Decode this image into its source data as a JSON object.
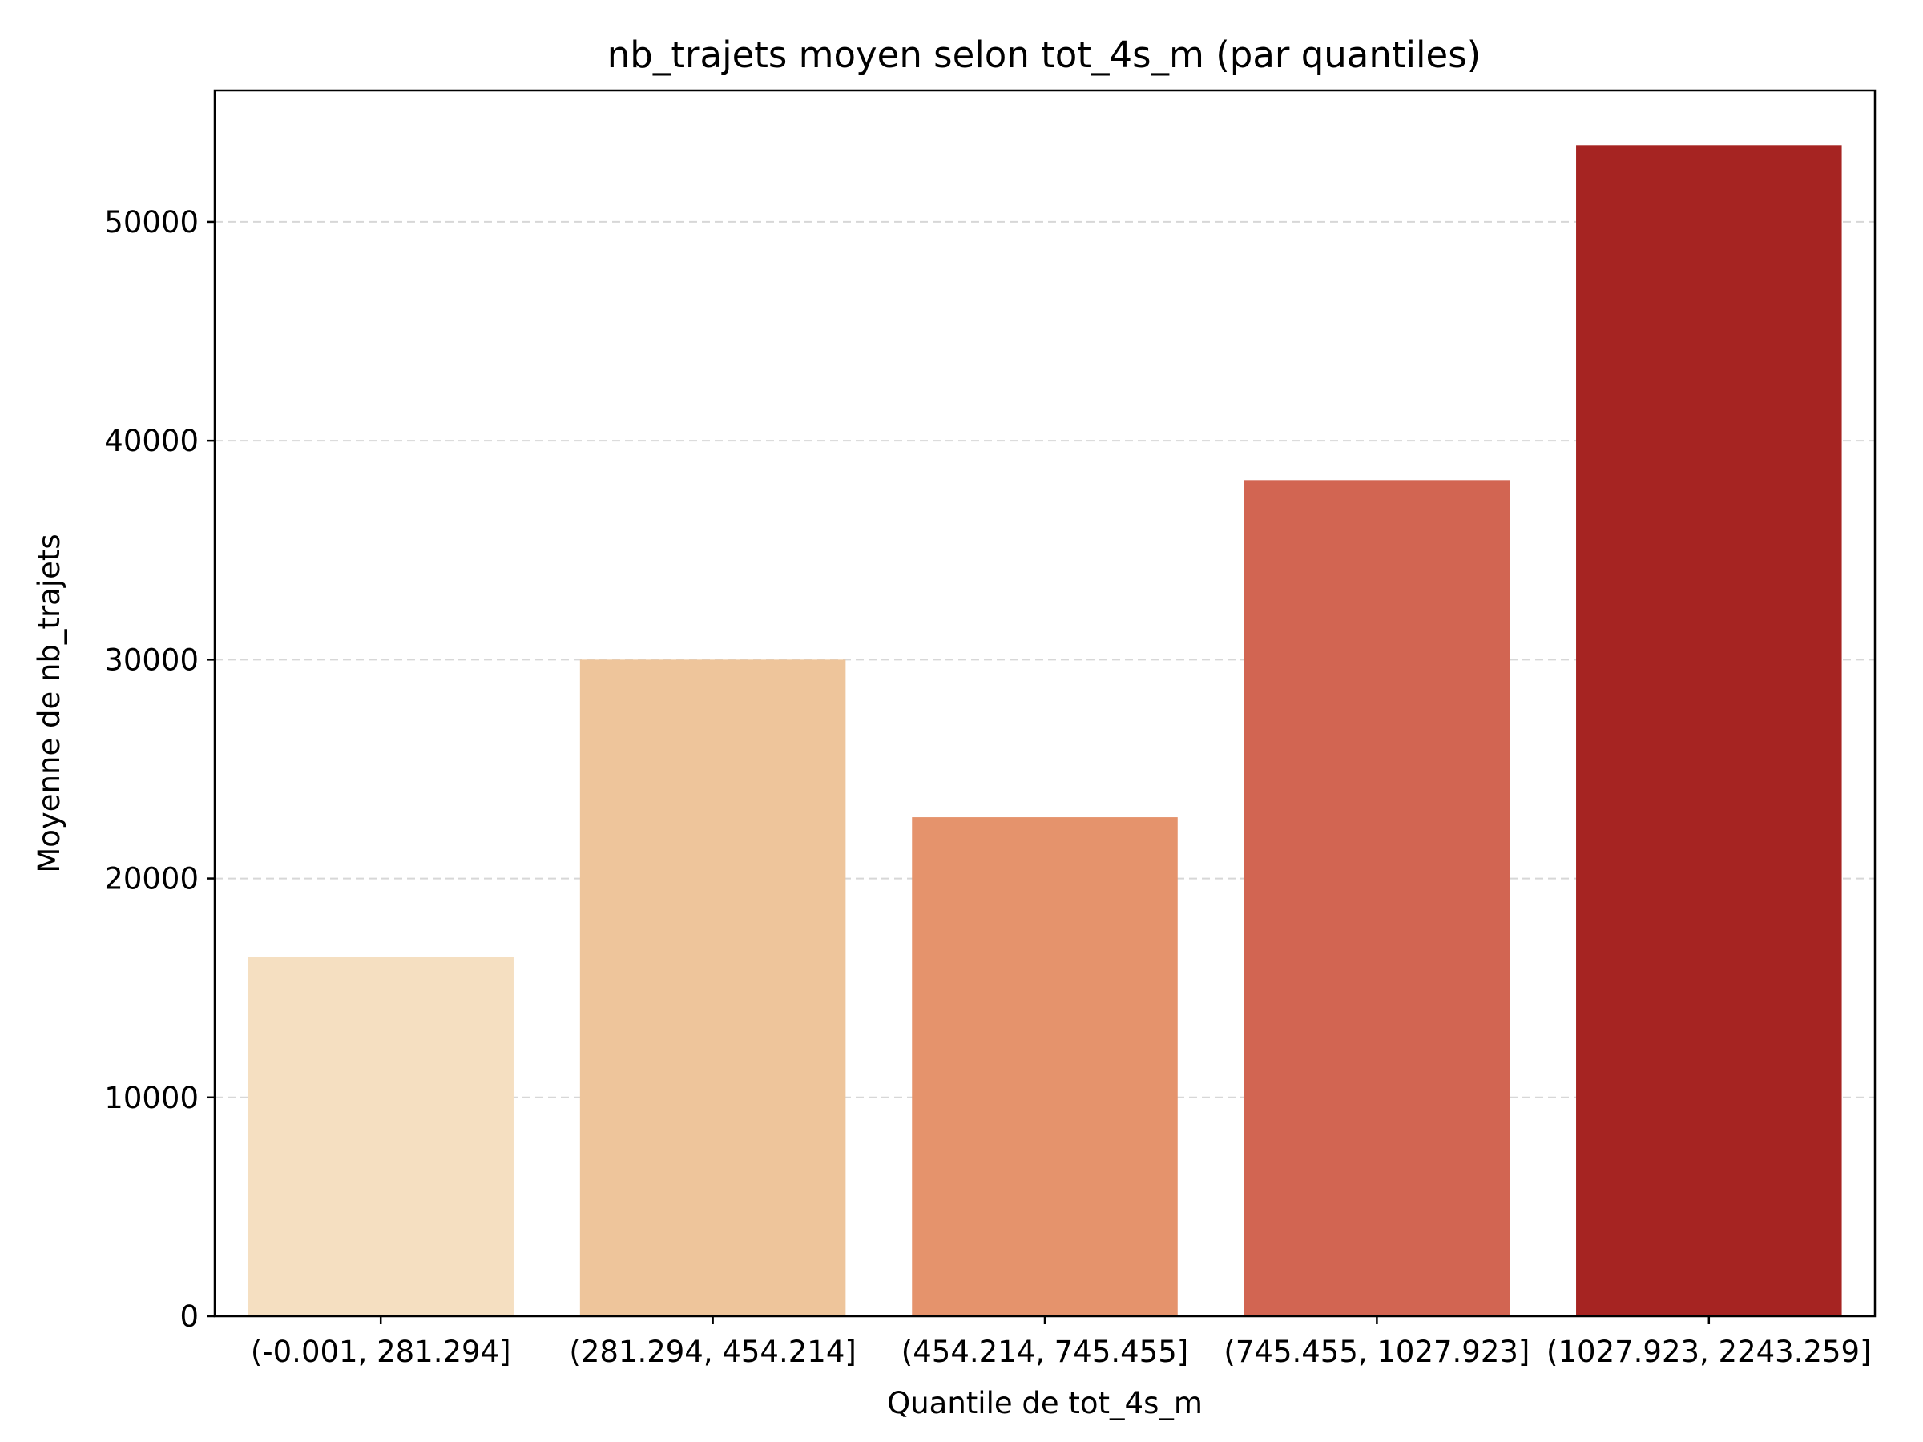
{
  "chart_data": {
    "type": "bar",
    "title": "nb_trajets moyen selon tot_4s_m (par quantiles)",
    "xlabel": "Quantile de tot_4s_m",
    "ylabel": "Moyenne de nb_trajets",
    "categories": [
      "(-0.001, 281.294]",
      "(281.294, 454.214]",
      "(454.214, 745.455]",
      "(745.455, 1027.923]",
      "(1027.923, 2243.259]"
    ],
    "values": [
      16400,
      30000,
      22800,
      38200,
      53500
    ],
    "colors": [
      "#f5dfc1",
      "#eec59b",
      "#e5936c",
      "#d26552",
      "#a62422"
    ],
    "ylim": [
      0,
      56000
    ],
    "yticks": [
      0,
      10000,
      20000,
      30000,
      40000,
      50000
    ],
    "grid": "y-dashed",
    "legend": "none"
  }
}
